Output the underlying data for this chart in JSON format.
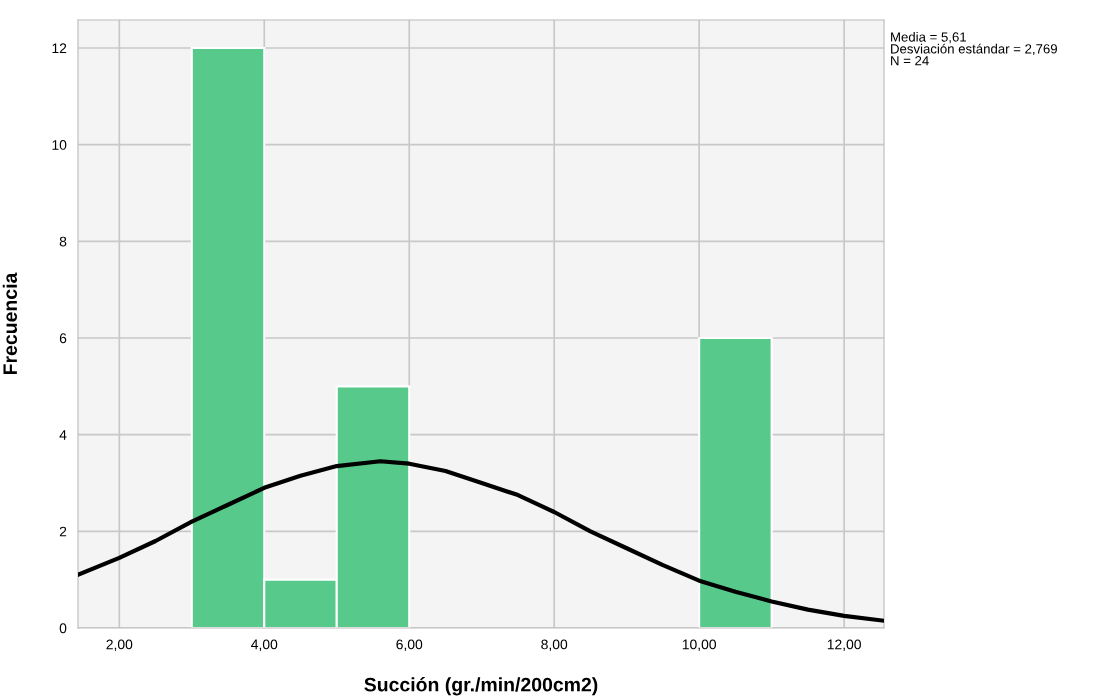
{
  "chart_data": {
    "type": "histogram",
    "xlabel": "Succión (gr./min/200cm2)",
    "ylabel": "Frecuencia",
    "bins": [
      3,
      4,
      5,
      6,
      7,
      8,
      9,
      10,
      11
    ],
    "values": [
      12,
      1,
      5,
      0,
      0,
      0,
      0,
      6
    ],
    "color": "#57c98a",
    "series": [
      {
        "type": "line",
        "color": "#000000",
        "x": [
          1.43,
          2,
          2.5,
          3,
          3.5,
          4,
          4.5,
          5,
          5.6,
          6,
          6.5,
          7,
          7.5,
          8,
          8.5,
          9,
          9.5,
          10,
          10.5,
          11,
          11.5,
          12,
          12.55
        ],
        "values": [
          1.1,
          1.45,
          1.8,
          2.2,
          2.55,
          2.9,
          3.15,
          3.35,
          3.45,
          3.4,
          3.25,
          3.0,
          2.75,
          2.4,
          2.0,
          1.65,
          1.3,
          0.98,
          0.75,
          0.55,
          0.38,
          0.25,
          0.15
        ]
      }
    ],
    "xlim": [
      1.43,
      12.55
    ],
    "xticks": [
      {
        "value": 2,
        "label": "2,00"
      },
      {
        "value": 4,
        "label": "4,00"
      },
      {
        "value": 6,
        "label": "6,00"
      },
      {
        "value": 8,
        "label": "8,00"
      },
      {
        "value": 10,
        "label": "10,00"
      },
      {
        "value": 12,
        "label": "12,00"
      }
    ],
    "ylim": [
      0,
      12.58
    ],
    "yticks": [
      0,
      2,
      4,
      6,
      8,
      10,
      12
    ],
    "grid": true,
    "annotations": [
      "Media = 5,61\nDesviación estándar = 2,769\nN = 24"
    ]
  }
}
